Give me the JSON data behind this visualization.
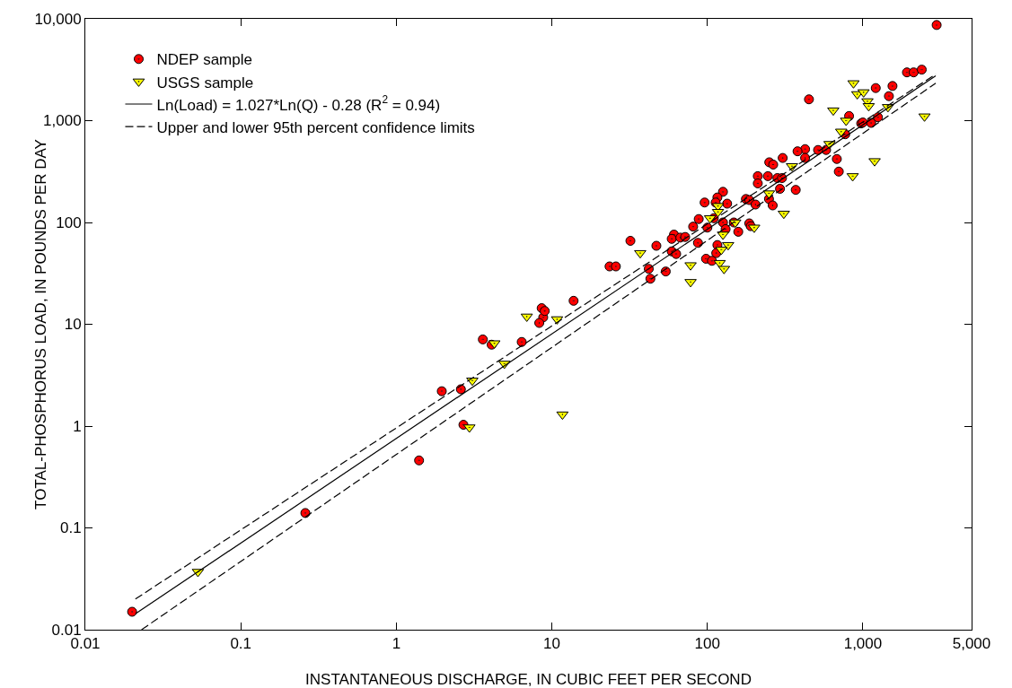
{
  "chart_data": {
    "type": "scatter",
    "xlabel": "INSTANTANEOUS DISCHARGE, IN CUBIC FEET PER SECOND",
    "ylabel": "TOTAL-PHOSPHORUS LOAD, IN POUNDS PER DAY",
    "log": "xy",
    "grid": false,
    "legend": "top left",
    "xlim": [
      0.01,
      5000
    ],
    "xticks": [
      0.01,
      0.1,
      1,
      10,
      100,
      {
        "value": 1000,
        "label": "1,000"
      },
      {
        "value": 5000,
        "label": "5,000"
      }
    ],
    "ylim": [
      0.01,
      10000
    ],
    "yticks": [
      0.01,
      0.1,
      1,
      10,
      100,
      {
        "value": 1000,
        "label": "1,000"
      },
      {
        "value": 10000,
        "label": "10,000"
      }
    ],
    "series": [
      {
        "name": "NDEP sample",
        "marker": "circle",
        "color": "#ff0000",
        "x": [
          0.02,
          0.26,
          1.4,
          2.7,
          1.96,
          2.6,
          3.6,
          4.1,
          6.4,
          8.6,
          8.8,
          8.3,
          9.0,
          13.8,
          23.5,
          25.8,
          2980,
          1920,
          2120,
          2390,
          1210,
          1550,
          1470,
          450,
          815,
          975,
          1000,
          1130,
          1250,
          770,
          580,
          515,
          425,
          380,
          425,
          680,
          700,
          305,
          250,
          265,
          211,
          245,
          211,
          282,
          302,
          293,
          249,
          370,
          263,
          177,
          186,
          204,
          126,
          116,
          96,
          113,
          134,
          110,
          88,
          81,
          100,
          126,
          131,
          148,
          158,
          186,
          190,
          116,
          114,
          98,
          107,
          61,
          59,
          67,
          72,
          87,
          32,
          47,
          59,
          63,
          54,
          42,
          43
        ],
        "values": [
          0.015,
          0.14,
          0.46,
          1.03,
          2.2,
          2.3,
          7.1,
          6.3,
          6.7,
          14.4,
          11.7,
          10.3,
          13.5,
          17,
          37,
          37,
          8700,
          2980,
          2980,
          3170,
          2090,
          2190,
          1740,
          1620,
          1110,
          940,
          960,
          950,
          1080,
          735,
          515,
          515,
          525,
          500,
          430,
          420,
          316,
          430,
          390,
          370,
          285,
          285,
          242,
          273,
          273,
          214,
          170,
          209,
          147,
          170,
          166,
          150,
          200,
          176,
          157,
          157,
          153,
          110,
          108,
          91,
          89,
          100,
          86,
          100,
          81,
          98,
          92,
          60,
          50,
          44,
          42,
          76,
          69,
          71,
          72,
          63,
          66,
          59,
          52,
          49,
          33,
          35,
          28
        ]
      },
      {
        "name": "USGS sample",
        "marker": "triangle",
        "color": "#ffff00",
        "x": [
          0.053,
          2.95,
          3.08,
          4.95,
          4.27,
          6.9,
          10.8,
          11.7,
          870,
          920,
          1010,
          1070,
          1090,
          1450,
          645,
          2490,
          780,
          725,
          610,
          860,
          1190,
          350,
          249,
          310,
          117,
          117,
          104,
          151,
          126,
          200,
          136,
          123,
          120,
          128,
          37,
          78,
          78
        ],
        "values": [
          0.037,
          0.97,
          2.8,
          4.1,
          6.5,
          11.9,
          11.2,
          1.3,
          2330,
          1820,
          1900,
          1550,
          1390,
          1360,
          1260,
          1100,
          1000,
          780,
          590,
          285,
          400,
          357,
          193,
          122,
          145,
          127,
          110,
          100,
          76,
          89,
          60,
          54,
          40,
          35,
          50,
          38,
          26
        ]
      },
      {
        "name": "Ln(Load) = 1.027*Ln(Q) - 0.28 (R$^{2}$ = 0.94)",
        "type": "line",
        "line_style": "solid",
        "color": "#000000",
        "x": [
          0.021,
          2940
        ],
        "values": [
          0.0143,
          2760
        ]
      },
      {
        "name": "Upper and lower 95th percent confidence limits",
        "type": "line",
        "line_style": "dashed",
        "color": "#000000",
        "x": [
          0.021,
          2940
        ],
        "values": [
          0.02,
          2860
        ]
      },
      {
        "type": "line",
        "line_style": "dashed",
        "color": "#000000",
        "x": [
          0.023,
          2940
        ],
        "values": [
          0.01,
          2330
        ]
      }
    ]
  }
}
